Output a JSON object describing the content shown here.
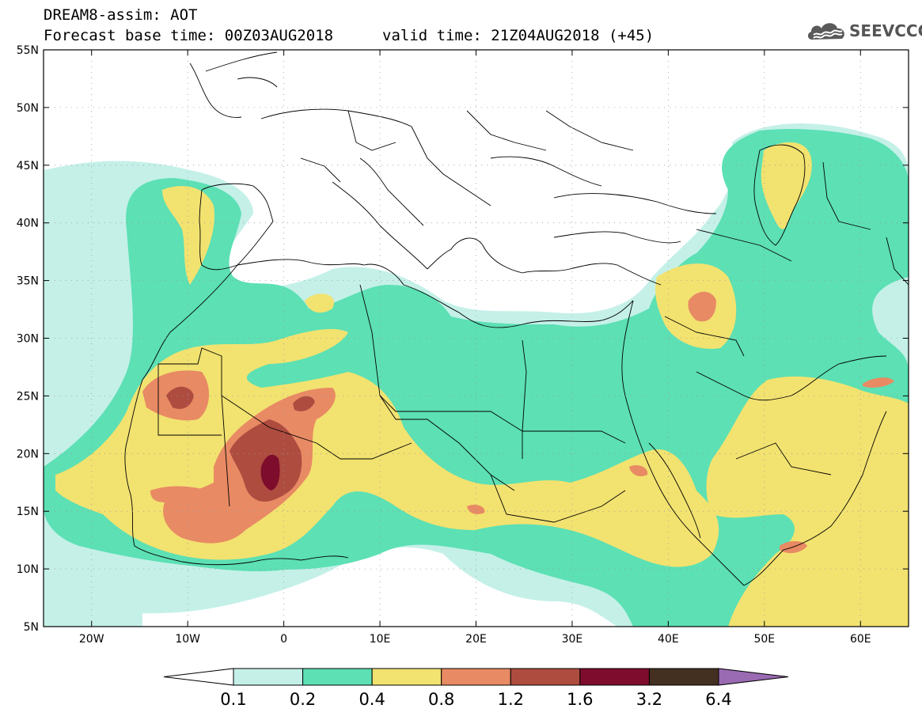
{
  "header": {
    "line1": "DREAM8-assim: AOT",
    "base_time_label": "Forecast base time: 00Z03AUG2018",
    "valid_time_label": "valid time: 21Z04AUG2018 (+45)"
  },
  "logo": {
    "text": "SEEVCCC",
    "icon": "cloud-icon"
  },
  "map": {
    "lat_ticks": [
      {
        "value": 55,
        "label": "55N"
      },
      {
        "value": 50,
        "label": "50N"
      },
      {
        "value": 45,
        "label": "45N"
      },
      {
        "value": 40,
        "label": "40N"
      },
      {
        "value": 35,
        "label": "35N"
      },
      {
        "value": 30,
        "label": "30N"
      },
      {
        "value": 25,
        "label": "25N"
      },
      {
        "value": 20,
        "label": "20N"
      },
      {
        "value": 15,
        "label": "15N"
      },
      {
        "value": 10,
        "label": "10N"
      },
      {
        "value": 5,
        "label": "5N"
      }
    ],
    "lon_ticks": [
      {
        "value": -20,
        "label": "20W"
      },
      {
        "value": -10,
        "label": "10W"
      },
      {
        "value": 0,
        "label": "0"
      },
      {
        "value": 10,
        "label": "10E"
      },
      {
        "value": 20,
        "label": "20E"
      },
      {
        "value": 30,
        "label": "30E"
      },
      {
        "value": 40,
        "label": "40E"
      },
      {
        "value": 50,
        "label": "50E"
      },
      {
        "value": 60,
        "label": "60E"
      }
    ],
    "lon_range": [
      -25,
      65
    ],
    "lat_range": [
      5,
      55
    ],
    "colors": [
      "#c4f0e8",
      "#5ce0b4",
      "#f2e270",
      "#e88a64",
      "#ae4c40",
      "#7e0c2c",
      "#443020",
      "#9a6ab2"
    ]
  },
  "colorbar": {
    "labels": [
      "0.1",
      "0.2",
      "0.4",
      "0.8",
      "1.2",
      "1.6",
      "3.2",
      "6.4"
    ],
    "colors": [
      "#c4f0e8",
      "#5ce0b4",
      "#f2e270",
      "#e88a64",
      "#ae4c40",
      "#7e0c2c",
      "#443020"
    ],
    "under_color": "#ffffff",
    "over_color": "#9a6ab2"
  }
}
